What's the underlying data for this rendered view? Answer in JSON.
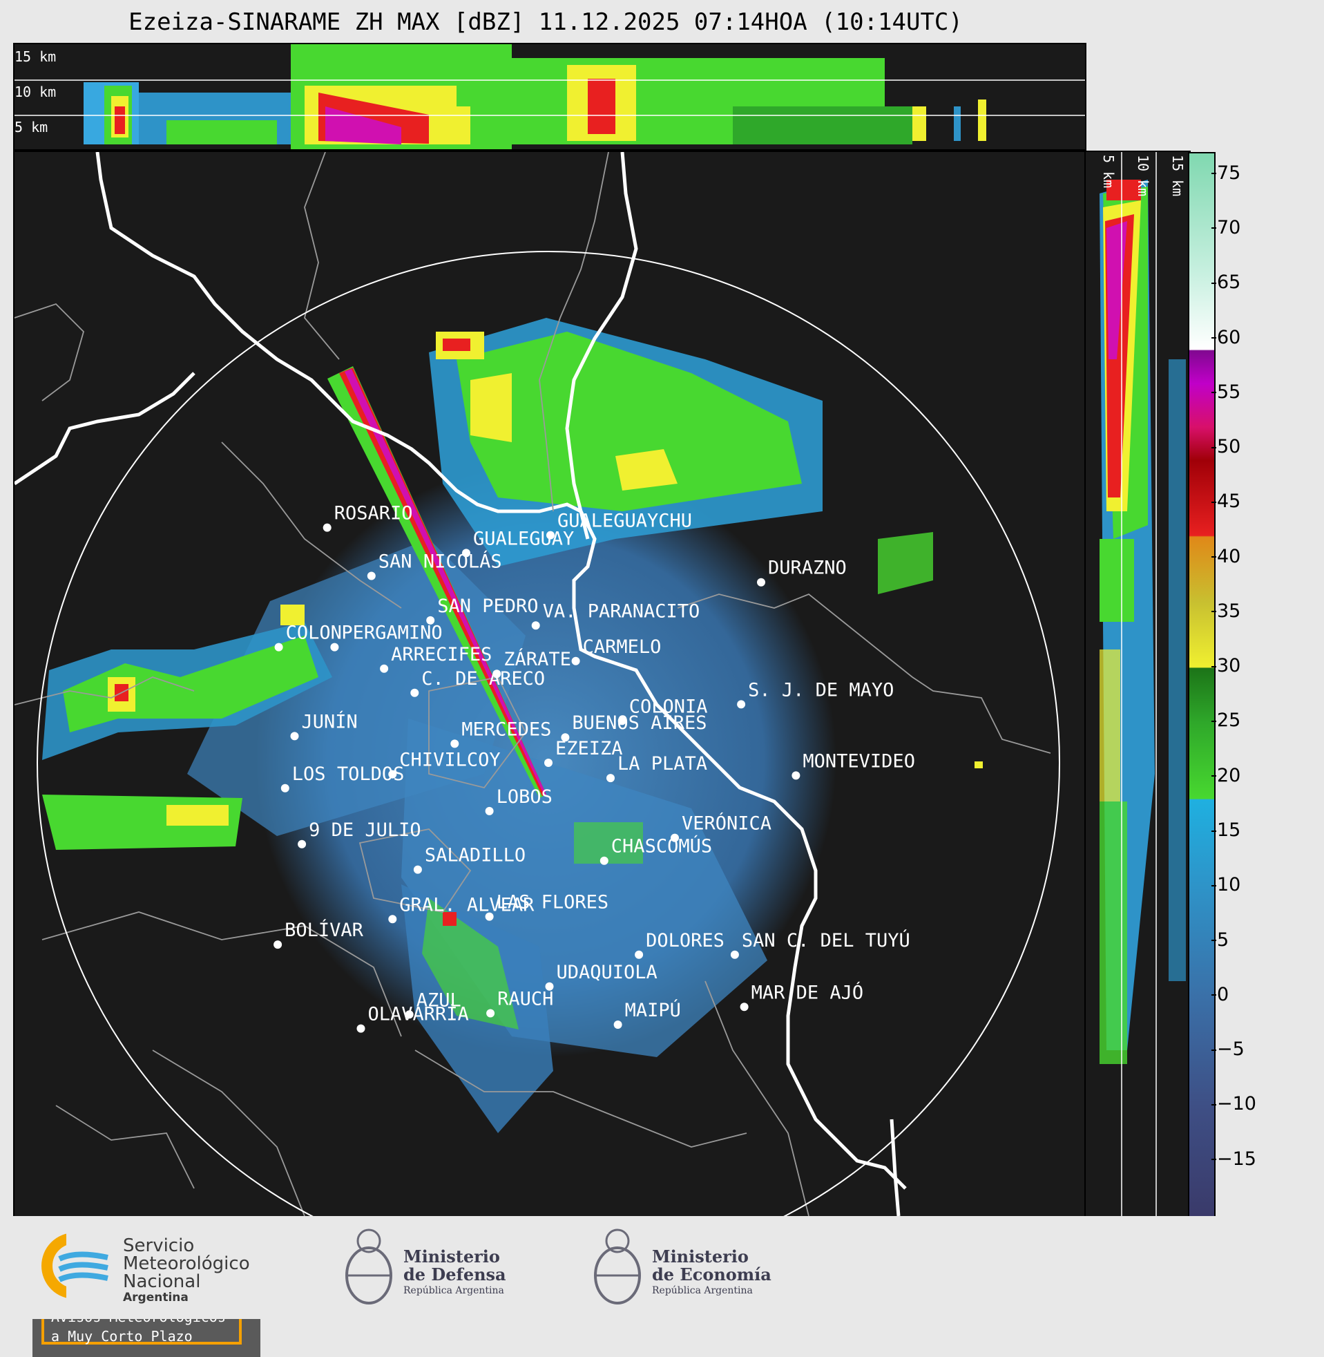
{
  "title": "Ezeiza-SINARAME ZH MAX [dBZ] 11.12.2025 07:14HOA (10:14UTC)",
  "top_profile": {
    "height_labels": [
      "15 km",
      "10 km",
      "5 km"
    ]
  },
  "side_profile": {
    "height_labels": [
      "5 km",
      "10 km",
      "15 km"
    ]
  },
  "colorbar": {
    "unit": "dBZ",
    "ticks": [
      "75",
      "70",
      "65",
      "60",
      "55",
      "50",
      "45",
      "40",
      "35",
      "30",
      "25",
      "20",
      "15",
      "10",
      "5",
      "0",
      "−5",
      "−10",
      "−15"
    ],
    "range": [
      -20,
      77
    ],
    "stops": [
      {
        "dbz": -20,
        "color": "#3a3a6a"
      },
      {
        "dbz": -10,
        "color": "#3e4f85"
      },
      {
        "dbz": 0,
        "color": "#3a70a8"
      },
      {
        "dbz": 10,
        "color": "#2e93c8"
      },
      {
        "dbz": 18,
        "color": "#1fb0e0"
      },
      {
        "dbz": 18.1,
        "color": "#48d830"
      },
      {
        "dbz": 25,
        "color": "#2fa82a"
      },
      {
        "dbz": 30,
        "color": "#1c7418"
      },
      {
        "dbz": 30.1,
        "color": "#f0f030"
      },
      {
        "dbz": 36,
        "color": "#c8c030"
      },
      {
        "dbz": 42,
        "color": "#e08818"
      },
      {
        "dbz": 42.1,
        "color": "#e82020"
      },
      {
        "dbz": 49,
        "color": "#a00008"
      },
      {
        "dbz": 52,
        "color": "#d8106a"
      },
      {
        "dbz": 56,
        "color": "#c000c8"
      },
      {
        "dbz": 59,
        "color": "#800890"
      },
      {
        "dbz": 59.1,
        "color": "#ffffff"
      },
      {
        "dbz": 66,
        "color": "#c8f0e0"
      },
      {
        "dbz": 77,
        "color": "#80d8b0"
      }
    ]
  },
  "cities": [
    {
      "name": "ROSARIO",
      "lon": -60.64,
      "lat": -32.95
    },
    {
      "name": "GUALEGUAYCHU",
      "lon": -58.52,
      "lat": -33.01
    },
    {
      "name": "GUALEGUAY",
      "lon": -59.32,
      "lat": -33.15
    },
    {
      "name": "SAN NICOLÁS",
      "lon": -60.22,
      "lat": -33.33
    },
    {
      "name": "DURAZNO",
      "lon": -56.52,
      "lat": -33.38
    },
    {
      "name": "SAN PEDRO",
      "lon": -59.66,
      "lat": -33.68
    },
    {
      "name": "VA. PARANACITO",
      "lon": -58.66,
      "lat": -33.72
    },
    {
      "name": "COLON",
      "lon": -61.1,
      "lat": -33.89
    },
    {
      "name": "PERGAMINO",
      "lon": -60.57,
      "lat": -33.89
    },
    {
      "name": "CARMELO",
      "lon": -58.28,
      "lat": -34.0
    },
    {
      "name": "ARRECIFES",
      "lon": -60.1,
      "lat": -34.06
    },
    {
      "name": "ZÁRATE",
      "lon": -59.03,
      "lat": -34.1
    },
    {
      "name": "S. J. DE MAYO",
      "lon": -56.71,
      "lat": -34.34
    },
    {
      "name": "C. DE ARECO",
      "lon": -59.81,
      "lat": -34.25
    },
    {
      "name": "COLONIA",
      "lon": -57.84,
      "lat": -34.47
    },
    {
      "name": "JUNÍN",
      "lon": -60.95,
      "lat": -34.59
    },
    {
      "name": "BUENOS AIRES",
      "lon": -58.38,
      "lat": -34.6
    },
    {
      "name": "MERCEDES",
      "lon": -59.43,
      "lat": -34.65
    },
    {
      "name": "MONTEVIDEO",
      "lon": -56.19,
      "lat": -34.9
    },
    {
      "name": "EZEIZA",
      "lon": -58.54,
      "lat": -34.8
    },
    {
      "name": "CHIVILCOY",
      "lon": -60.02,
      "lat": -34.89
    },
    {
      "name": "LA PLATA",
      "lon": -57.95,
      "lat": -34.92
    },
    {
      "name": "LOS TOLDOS",
      "lon": -61.04,
      "lat": -35.0
    },
    {
      "name": "LOBOS",
      "lon": -59.1,
      "lat": -35.18
    },
    {
      "name": "VERÓNICA",
      "lon": -57.34,
      "lat": -35.39
    },
    {
      "name": "9 DE JULIO",
      "lon": -60.88,
      "lat": -35.44
    },
    {
      "name": "CHASCOMÚS",
      "lon": -58.01,
      "lat": -35.57
    },
    {
      "name": "SALADILLO",
      "lon": -59.78,
      "lat": -35.64
    },
    {
      "name": "GRAL. ALVEAR",
      "lon": -60.02,
      "lat": -36.03
    },
    {
      "name": "LAS FLORES",
      "lon": -59.1,
      "lat": -36.01
    },
    {
      "name": "BOLÍVAR",
      "lon": -61.11,
      "lat": -36.23
    },
    {
      "name": "DOLORES",
      "lon": -57.68,
      "lat": -36.31
    },
    {
      "name": "SAN C. DEL TUYÚ",
      "lon": -56.77,
      "lat": -36.31
    },
    {
      "name": "UDAQUIOLA",
      "lon": -58.53,
      "lat": -36.56
    },
    {
      "name": "AZUL",
      "lon": -59.86,
      "lat": -36.78
    },
    {
      "name": "RAUCH",
      "lon": -59.09,
      "lat": -36.77
    },
    {
      "name": "MAR DE AJÓ",
      "lon": -56.68,
      "lat": -36.72
    },
    {
      "name": "MAIPÚ",
      "lon": -57.88,
      "lat": -36.86
    },
    {
      "name": "OLAVARRÍA",
      "lon": -60.32,
      "lat": -36.89
    }
  ],
  "warning_box": {
    "line1": "Avisos Meteorológicos",
    "line2": "a Muy Corto Plazo"
  },
  "logos": {
    "smn": {
      "line1": "Servicio",
      "line2": "Meteorológico",
      "line3": "Nacional",
      "line4": "Argentina",
      "colors": {
        "ring": "#f5a800",
        "waves": "#3fa9e0"
      }
    },
    "defensa": {
      "line1": "Ministerio",
      "line2": "de Defensa",
      "line3": "República Argentina"
    },
    "economia": {
      "line1": "Ministerio",
      "line2": "de Economía",
      "line3": "República Argentina"
    }
  }
}
